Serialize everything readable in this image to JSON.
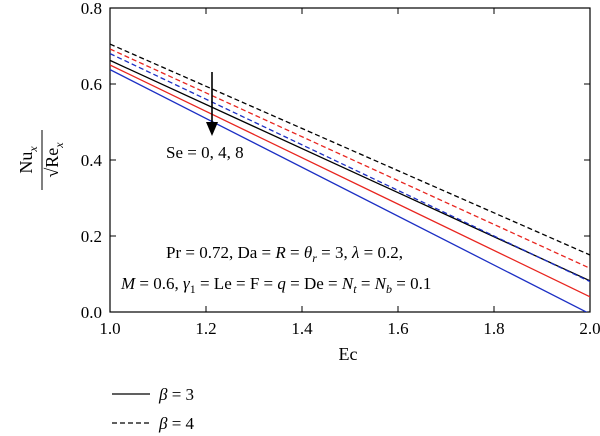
{
  "chart_data": {
    "type": "line",
    "xlabel": "Ec",
    "ylabel": {
      "numerator": "Nu",
      "numerator_sub": "x",
      "denominator": "√Re",
      "denominator_sub": "x"
    },
    "xlim": [
      1.0,
      2.0
    ],
    "ylim": [
      0.0,
      0.8
    ],
    "xticks": [
      "1.0",
      "1.2",
      "1.4",
      "1.6",
      "1.8",
      "2.0"
    ],
    "yticks": [
      "0.0",
      "0.2",
      "0.4",
      "0.6",
      "0.8"
    ],
    "grid": false,
    "legend_placement": "bottom-left, outside",
    "legend": [
      {
        "label": "β = 3",
        "style": "solid"
      },
      {
        "label": "β = 4",
        "style": "dashed"
      }
    ],
    "annotations": {
      "arrow_label": "Se = 0, 4, 8",
      "params_line1": "Pr = 0.72, Da = R = θr = 3, λ = 0.2,",
      "params_line2": "M = 0.6, γ1 = Le = F = q = De = Nt = Nb = 0.1"
    },
    "series": [
      {
        "beta": 3,
        "Se": 0,
        "color": "#000000",
        "style": "solid",
        "x": [
          1.0,
          2.0
        ],
        "y": [
          0.662,
          0.082
        ]
      },
      {
        "beta": 3,
        "Se": 4,
        "color": "#e8251f",
        "style": "solid",
        "x": [
          1.0,
          2.0
        ],
        "y": [
          0.65,
          0.04
        ]
      },
      {
        "beta": 3,
        "Se": 8,
        "color": "#1c2fc4",
        "style": "solid",
        "x": [
          1.0,
          2.0
        ],
        "y": [
          0.638,
          -0.005
        ]
      },
      {
        "beta": 4,
        "Se": 0,
        "color": "#000000",
        "style": "dashed",
        "x": [
          1.0,
          2.0
        ],
        "y": [
          0.705,
          0.15
        ]
      },
      {
        "beta": 4,
        "Se": 4,
        "color": "#e8251f",
        "style": "dashed",
        "x": [
          1.0,
          2.0
        ],
        "y": [
          0.692,
          0.115
        ]
      },
      {
        "beta": 4,
        "Se": 8,
        "color": "#1c2fc4",
        "style": "dashed",
        "x": [
          1.0,
          2.0
        ],
        "y": [
          0.68,
          0.08
        ]
      }
    ]
  }
}
